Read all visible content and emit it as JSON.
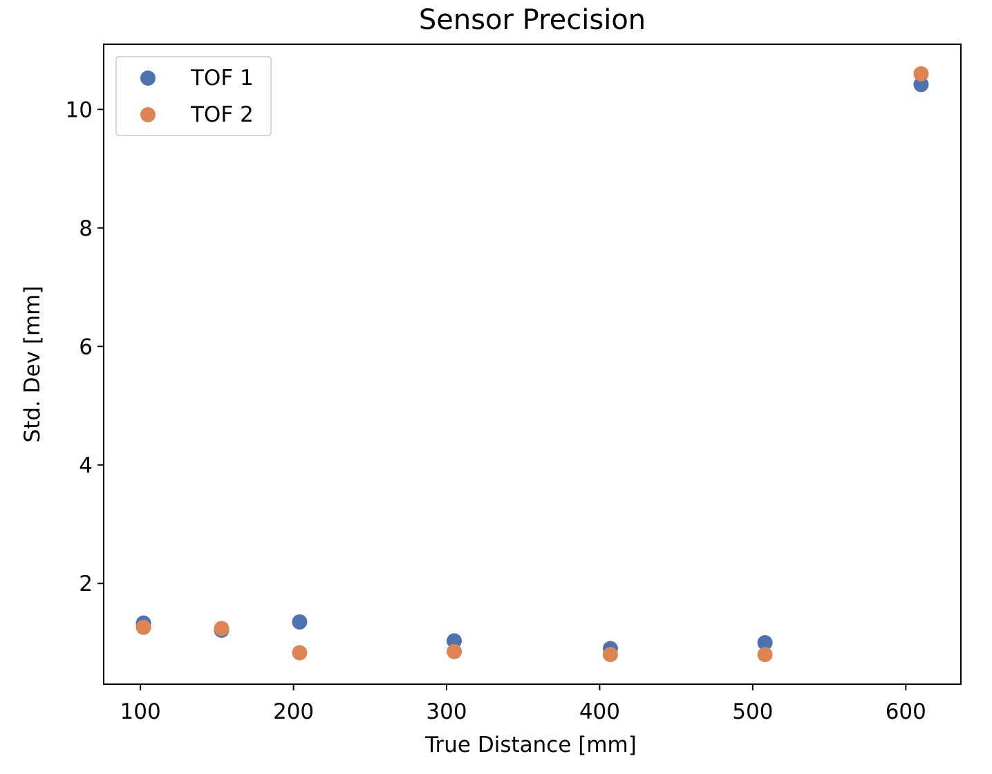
{
  "chart_data": {
    "type": "scatter",
    "title": "Sensor Precision",
    "xlabel": "True Distance [mm]",
    "ylabel": "Std. Dev [mm]",
    "xlim": [
      76,
      636
    ],
    "ylim": [
      0.3,
      11.1
    ],
    "xticks": [
      100,
      200,
      300,
      400,
      500,
      600
    ],
    "yticks": [
      2,
      4,
      6,
      8,
      10
    ],
    "grid": false,
    "legend_position": "top-left",
    "series": [
      {
        "name": "TOF 1",
        "color": "#4c72b0",
        "points": [
          {
            "x": 102,
            "y": 1.33
          },
          {
            "x": 153,
            "y": 1.21
          },
          {
            "x": 204,
            "y": 1.35
          },
          {
            "x": 305,
            "y": 1.03
          },
          {
            "x": 407,
            "y": 0.9
          },
          {
            "x": 508,
            "y": 1.0
          },
          {
            "x": 610,
            "y": 10.42
          }
        ]
      },
      {
        "name": "TOF 2",
        "color": "#dd8452",
        "points": [
          {
            "x": 102,
            "y": 1.26
          },
          {
            "x": 153,
            "y": 1.24
          },
          {
            "x": 204,
            "y": 0.83
          },
          {
            "x": 305,
            "y": 0.85
          },
          {
            "x": 407,
            "y": 0.8
          },
          {
            "x": 508,
            "y": 0.8
          },
          {
            "x": 610,
            "y": 10.6
          }
        ]
      }
    ]
  }
}
